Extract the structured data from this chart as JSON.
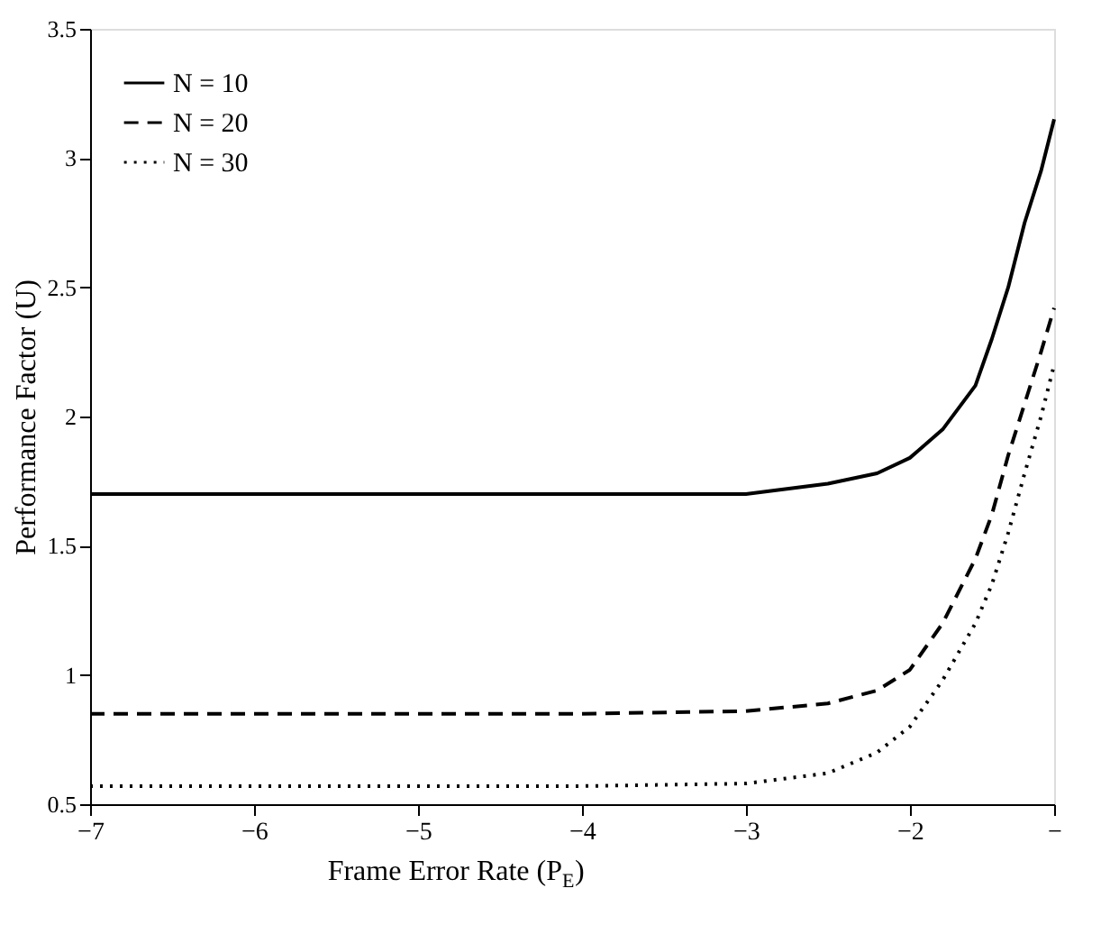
{
  "chart_data": {
    "type": "line",
    "xlabel": "Frame Error Rate (P$_{E}$)",
    "ylabel": "Performance Factor (U)",
    "x": [
      -7,
      -6,
      -5,
      -4,
      -3,
      -2.5,
      -2.2,
      -2,
      -1.8,
      -1.6,
      -1.5,
      -1.4,
      -1.3,
      -1.2,
      -1.12
    ],
    "series": [
      {
        "name": "N = 10",
        "color": "#000000",
        "line_style": "solid",
        "values": [
          1.7,
          1.7,
          1.7,
          1.7,
          1.7,
          1.74,
          1.78,
          1.84,
          1.95,
          2.12,
          2.3,
          2.5,
          2.75,
          2.95,
          3.15
        ]
      },
      {
        "name": "N = 20",
        "color": "#000000",
        "line_style": "dashed",
        "values": [
          0.85,
          0.85,
          0.85,
          0.85,
          0.86,
          0.89,
          0.94,
          1.02,
          1.2,
          1.45,
          1.62,
          1.85,
          2.05,
          2.25,
          2.42
        ]
      },
      {
        "name": "N = 30",
        "color": "#000000",
        "line_style": "dotted",
        "values": [
          0.57,
          0.57,
          0.57,
          0.57,
          0.58,
          0.62,
          0.7,
          0.8,
          0.98,
          1.2,
          1.35,
          1.55,
          1.78,
          2.0,
          2.2
        ]
      }
    ],
    "xlim": [
      -7,
      -1.12
    ],
    "xticks": [
      {
        "value": -7,
        "label": "−7"
      },
      {
        "value": -6,
        "label": "−6"
      },
      {
        "value": -5,
        "label": "−5"
      },
      {
        "value": -4,
        "label": "−4"
      },
      {
        "value": -3,
        "label": "−3"
      },
      {
        "value": -2,
        "label": "−2"
      },
      {
        "value": -1.12,
        "label": "−"
      }
    ],
    "ylim": [
      0.5,
      3.5
    ],
    "yticks": [
      0.5,
      1,
      1.5,
      2,
      2.5,
      3,
      3.5
    ],
    "grid": false,
    "legend": "top left",
    "marker": "none"
  }
}
